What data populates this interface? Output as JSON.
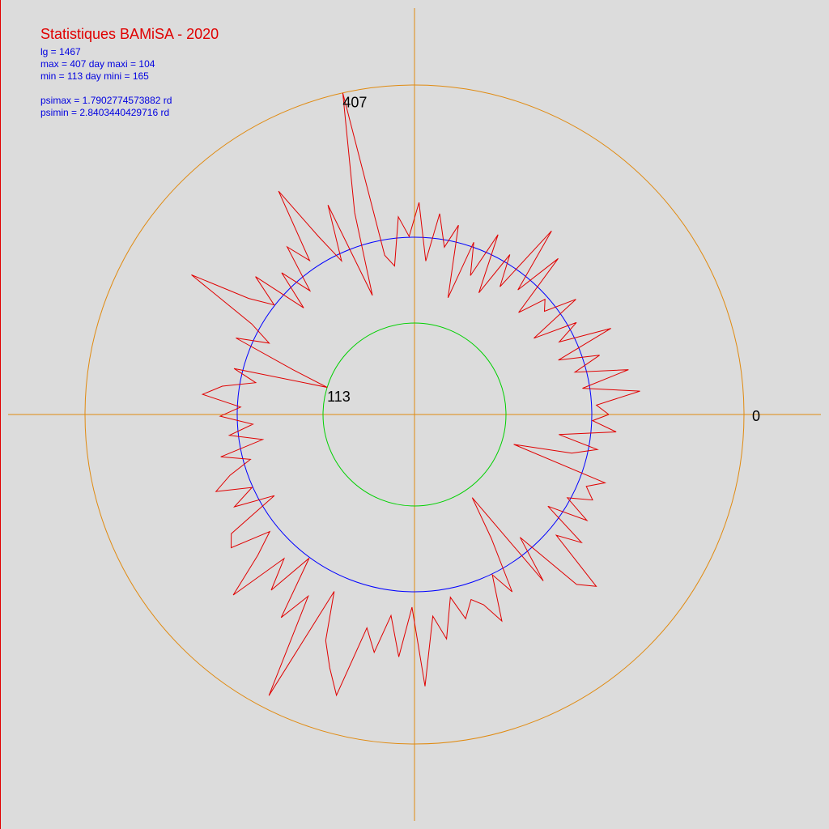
{
  "chart_data": {
    "type": "polar_line",
    "title": "Statistiques BAMiSA - 2020",
    "info_lines": [
      "lg = 1467",
      "max = 407  day maxi = 104",
      "min = 113   day mini = 165",
      "psimax = 1.7902774573882  rd",
      "psimin = 2.8403440429716  rd"
    ],
    "max": 407,
    "min": 113,
    "day_max": 104,
    "day_min": 165,
    "mean": 219,
    "angle_zero": 0,
    "days_per_turn": 365,
    "rlim": [
      0,
      407
    ],
    "axis_color": "#e08a10",
    "max_circle_color": "#e08a10",
    "mean_circle_color": "#0000ff",
    "min_circle_color": "#00d000",
    "series": [
      {
        "name": "2020",
        "color": "#e00000",
        "x": [
          0,
          3,
          6,
          9,
          12,
          15,
          18,
          21,
          24,
          27,
          30,
          33,
          36,
          39,
          42,
          45,
          48,
          51,
          54,
          57,
          60,
          63,
          66,
          69,
          72,
          75,
          78,
          81,
          84,
          87,
          90,
          93,
          96,
          99,
          102,
          104,
          108,
          111,
          114,
          117,
          120,
          123,
          126,
          129,
          132,
          135,
          138,
          141,
          144,
          147,
          150,
          153,
          156,
          159,
          162,
          165,
          168,
          171,
          174,
          177,
          180,
          183,
          186,
          189,
          192,
          195,
          198,
          201,
          204,
          207,
          210,
          213,
          216,
          219,
          222,
          225,
          228,
          231,
          234,
          237,
          240,
          243,
          246,
          249,
          252,
          255,
          258,
          261,
          264,
          267,
          270,
          273,
          276,
          279,
          282,
          285,
          288,
          291,
          294,
          297,
          300,
          303,
          306,
          309,
          312,
          315,
          318,
          321,
          324,
          327,
          330,
          333,
          336,
          339,
          342,
          345,
          348,
          351,
          354,
          357,
          360,
          363
        ],
        "values": [
          240,
          225,
          280,
          210,
          270,
          205,
          240,
          190,
          265,
          200,
          230,
          175,
          245,
          205,
          215,
          180,
          262,
          200,
          283,
          190,
          230,
          170,
          245,
          185,
          225,
          150,
          240,
          210,
          250,
          190,
          262,
          220,
          245,
          185,
          200,
          407,
          260,
          156,
          280,
          210,
          250,
          323,
          230,
          260,
          200,
          240,
          190,
          260,
          220,
          250,
          325,
          230,
          200,
          240,
          160,
          113,
          230,
          200,
          240,
          263,
          215,
          240,
          200,
          230,
          190,
          245,
          210,
          240,
          263,
          220,
          250,
          200,
          270,
          280,
          230,
          260,
          316,
          240,
          280,
          220,
          300,
          260,
          391,
          240,
          300,
          330,
          360,
          270,
          298,
          250,
          300,
          238,
          336,
          250,
          280,
          230,
          260,
          239,
          250,
          277,
          220,
          250,
          180,
          125,
          260,
          200,
          290,
          309,
          230,
          260,
          200,
          250,
          215,
          244,
          230,
          250,
          128,
          200,
          230,
          180,
          250,
          220
        ]
      }
    ]
  }
}
